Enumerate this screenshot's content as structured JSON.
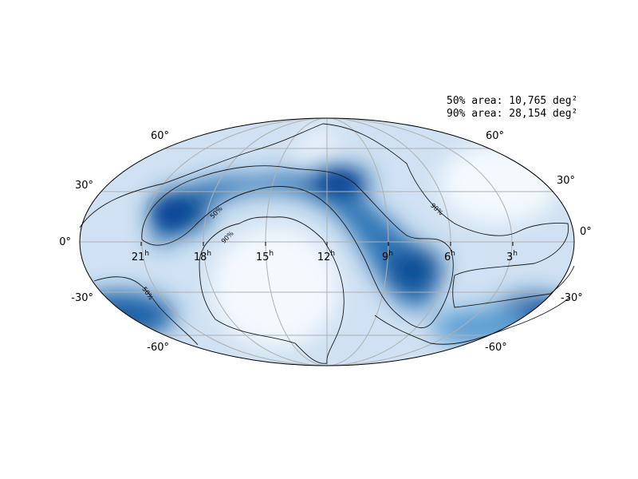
{
  "areas": {
    "area50": "50% area: 10,765 deg²",
    "area90": "90% area: 28,154 deg²"
  },
  "ra_labels": [
    "21",
    "18",
    "15",
    "12",
    "9",
    "6",
    "3"
  ],
  "ra_unit": "h",
  "dec_labels_left": [
    "60°",
    "30°",
    "0°",
    "-30°",
    "-60°"
  ],
  "dec_labels_right": [
    "60°",
    "30°",
    "0°",
    "-30°",
    "-60°"
  ],
  "contour_labels": [
    "50%",
    "90%",
    "50%",
    "90%"
  ],
  "colors": {
    "low": "#f7fbff",
    "high": "#08519c",
    "grid": "#b0b0b0",
    "contour": "#1a1a1a",
    "border": "#000000"
  },
  "projection": "mollweide",
  "colormap": "Blues"
}
